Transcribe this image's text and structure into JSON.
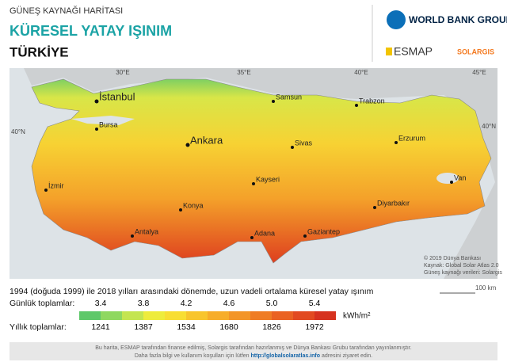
{
  "header": {
    "subtitle": "GÜNEŞ KAYNAĞI HARİTASI",
    "title": "KÜRESEL YATAY IŞINIM",
    "country": "TÜRKİYE",
    "logos": [
      "WORLD BANK GROUP",
      "ESMAP",
      "SOLARGIS"
    ]
  },
  "map": {
    "longitudes": [
      "30°E",
      "35°E",
      "40°E",
      "45°E"
    ],
    "latitudes": [
      "40°N",
      "40°N"
    ],
    "cities": [
      "İstanbul",
      "Bursa",
      "Ankara",
      "Samsun",
      "Trabzon",
      "Sivas",
      "Erzurum",
      "İzmir",
      "Konya",
      "Kayseri",
      "Van",
      "Diyarbakır",
      "Antalya",
      "Adana",
      "Gaziantep"
    ],
    "credits": [
      "© 2019 Dünya Bankası",
      "Kaynak: Global Solar Atlas 2.0",
      "Güneş kaynağı verileri: Solargis"
    ],
    "scale": "100 km"
  },
  "legend": {
    "caption": "1994 (doğuda 1999) ile 2018 yılları arasındaki dönemde, uzun vadeli ortalama küresel yatay ışınım",
    "daily_label": "Günlük toplamlar:",
    "daily": [
      "3.4",
      "3.8",
      "4.2",
      "4.6",
      "5.0",
      "5.4"
    ],
    "yearly_label": "Yıllık toplamlar:",
    "yearly": [
      "1241",
      "1387",
      "1534",
      "1680",
      "1826",
      "1972"
    ],
    "unit": "kWh/m²",
    "colors": [
      "#5ec86a",
      "#8fd860",
      "#c4e550",
      "#eeec3c",
      "#f8de33",
      "#f8c52d",
      "#f7ad2a",
      "#f39527",
      "#ef7c24",
      "#ea6222",
      "#e24a20",
      "#d6321f"
    ]
  },
  "footer": {
    "line1": "Bu harita, ESMAP tarafından finanse edilmiş, Solargis tarafından hazırlanmış ve Dünya Bankası Grubu tarafından yayınlanmıştır.",
    "line2a": "Daha fazla bilgi ve kullanım koşulları için lütfen",
    "link": "http://globalsolaratlas.info",
    "line2b": "adresini ziyaret edin."
  }
}
